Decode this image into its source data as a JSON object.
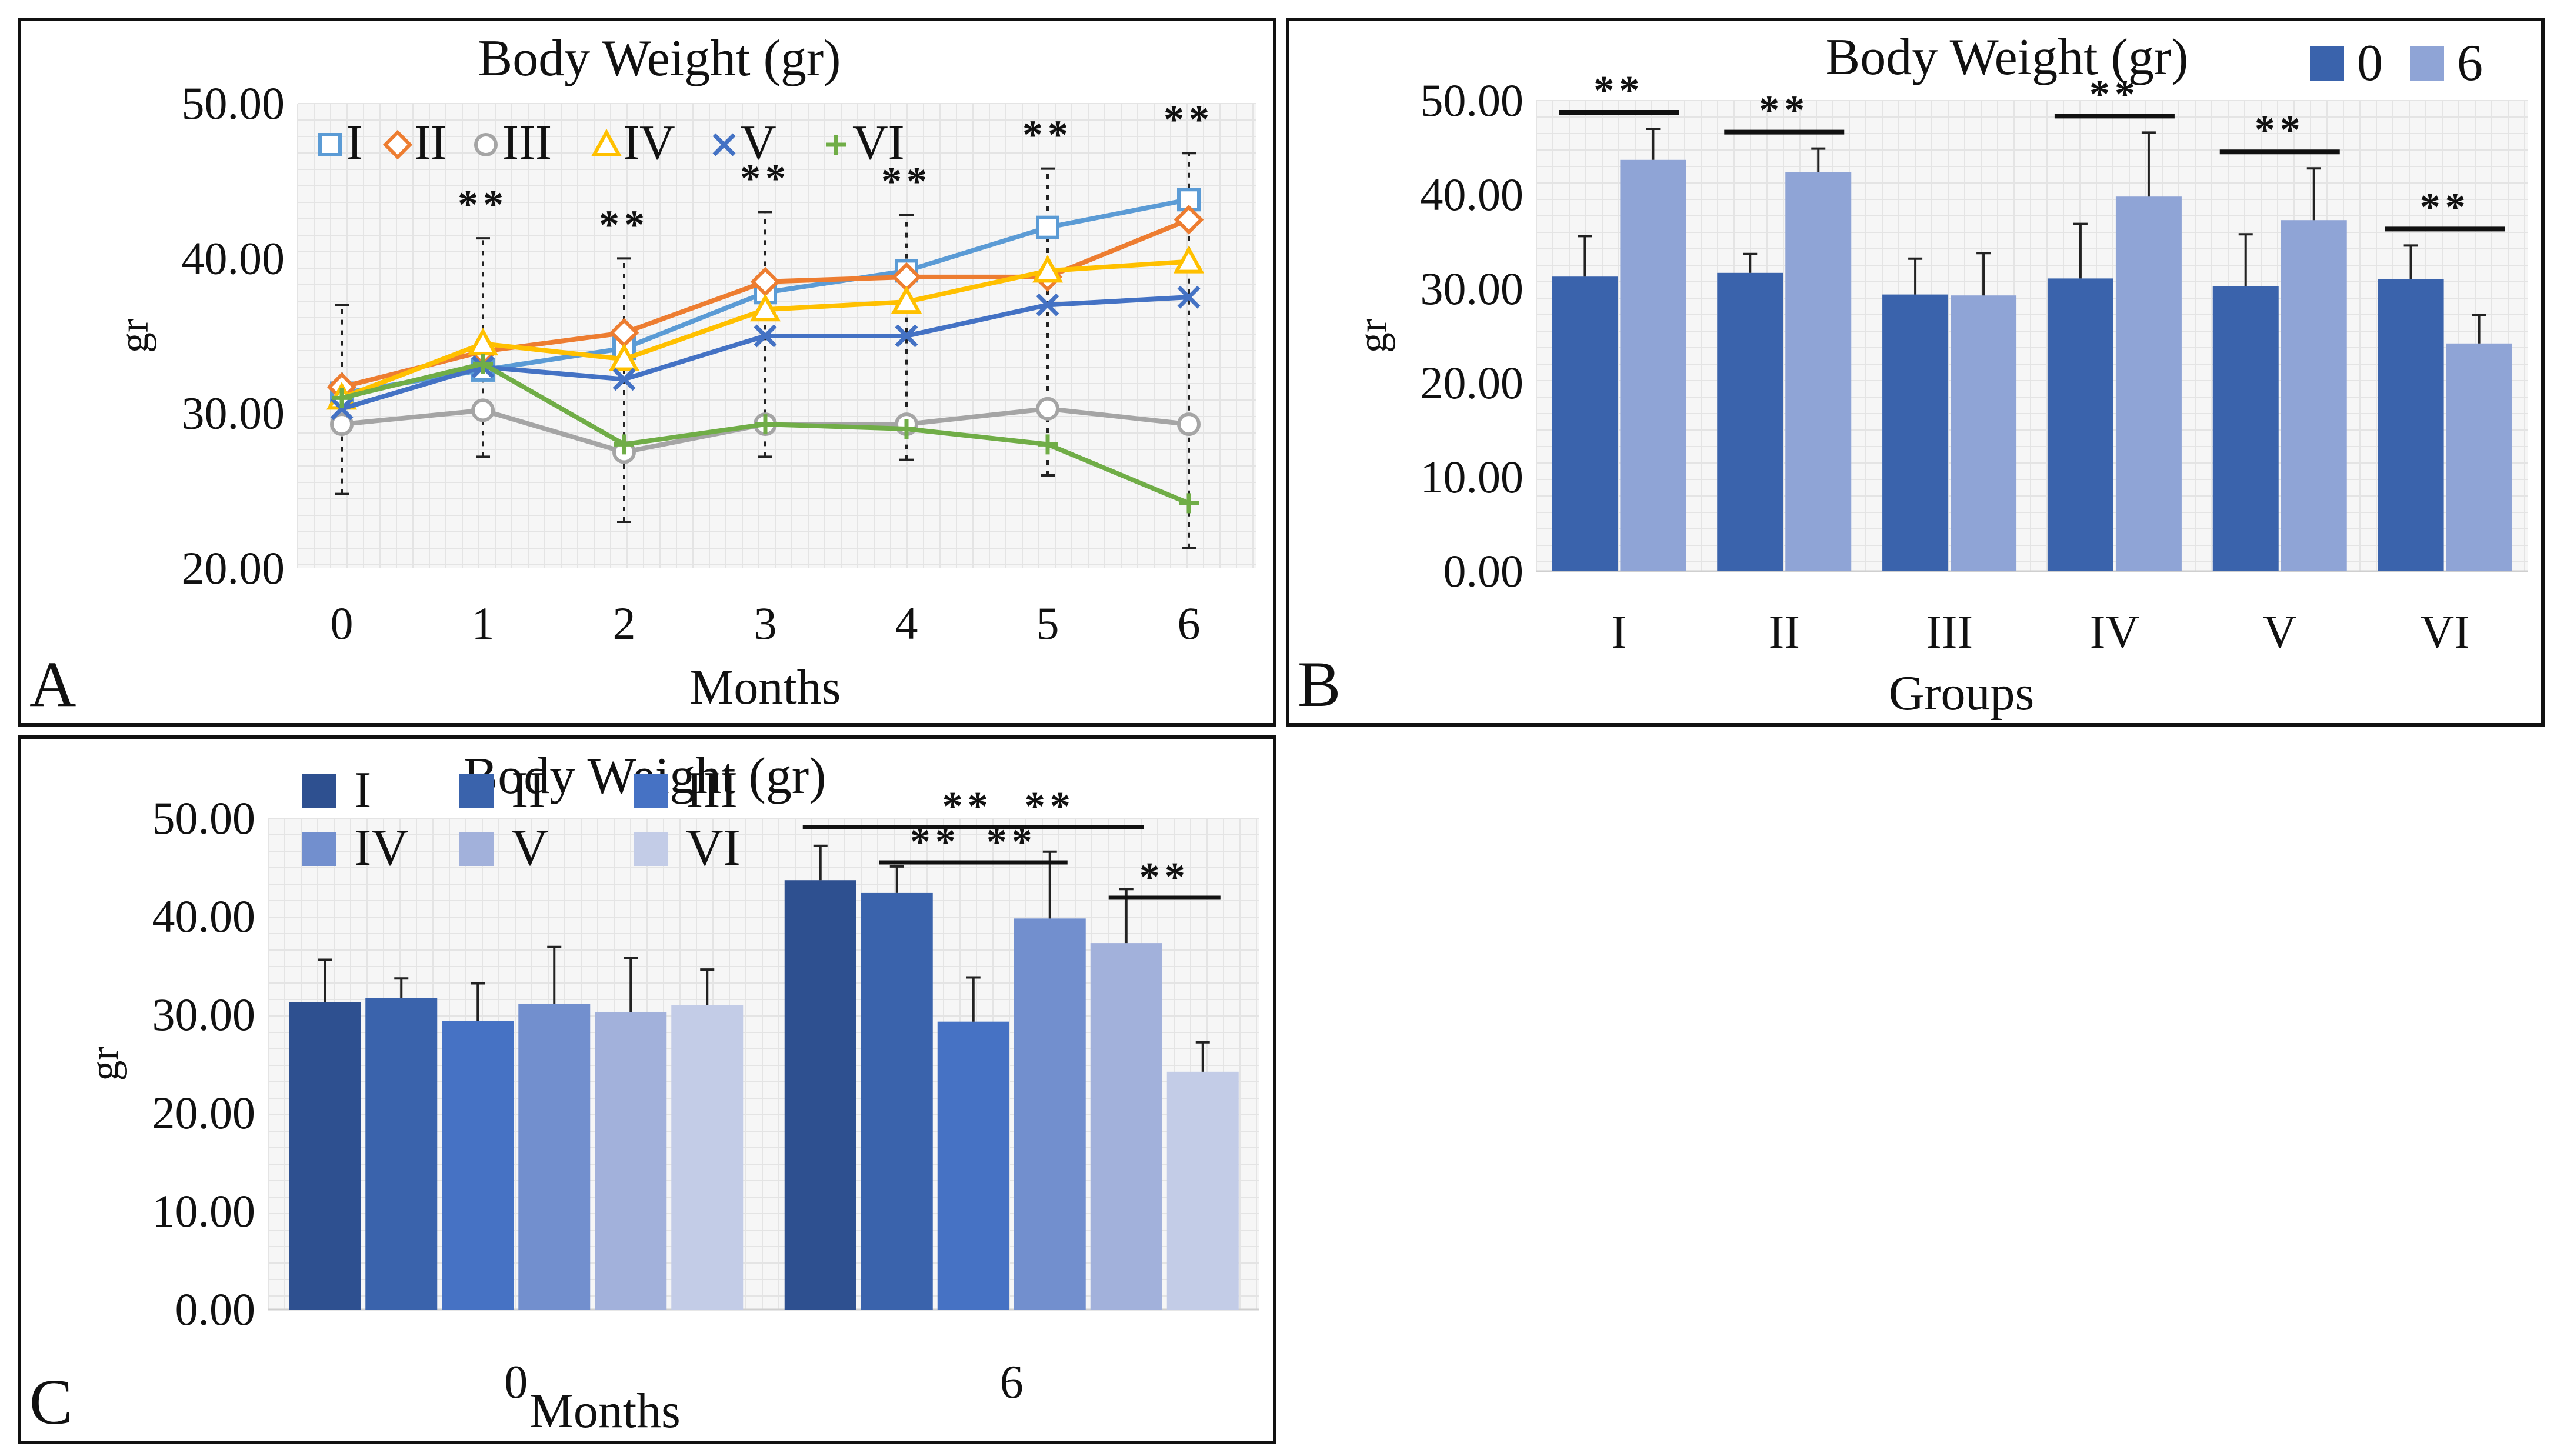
{
  "chart_data": [
    {
      "panel": "A",
      "type": "line",
      "title": "Body Weight (gr)",
      "xlabel": "Months",
      "ylabel": "gr",
      "ylim": [
        20,
        50
      ],
      "yticks": [
        "20.00",
        "30.00",
        "40.00",
        "50.00"
      ],
      "categories": [
        "0",
        "1",
        "2",
        "3",
        "4",
        "5",
        "6"
      ],
      "series": [
        {
          "name": "I",
          "color": "#5B9BD5",
          "marker": "square",
          "values": [
            31.3,
            32.8,
            34.2,
            37.8,
            39.2,
            42.0,
            43.8
          ]
        },
        {
          "name": "II",
          "color": "#ED7D31",
          "marker": "diamond",
          "values": [
            31.7,
            34.0,
            35.2,
            38.5,
            38.8,
            38.8,
            42.5
          ]
        },
        {
          "name": "III",
          "color": "#A5A5A5",
          "marker": "circle",
          "values": [
            29.3,
            30.2,
            27.5,
            29.3,
            29.3,
            30.3,
            29.3
          ]
        },
        {
          "name": "IV",
          "color": "#FFC000",
          "marker": "triangle",
          "values": [
            31.0,
            34.5,
            33.5,
            36.7,
            37.2,
            39.2,
            39.8
          ]
        },
        {
          "name": "V",
          "color": "#4472C4",
          "marker": "x",
          "values": [
            30.3,
            33.0,
            32.2,
            35.0,
            35.0,
            37.0,
            37.5
          ]
        },
        {
          "name": "VI",
          "color": "#70AD47",
          "marker": "plus",
          "values": [
            31.0,
            33.2,
            28.0,
            29.3,
            29.0,
            28.0,
            24.2
          ]
        }
      ],
      "error_bars": [
        {
          "lo": 24.8,
          "hi": 37.0
        },
        {
          "lo": 27.2,
          "hi": 41.3
        },
        {
          "lo": 23.0,
          "hi": 40.0
        },
        {
          "lo": 27.2,
          "hi": 43.0
        },
        {
          "lo": 27.0,
          "hi": 42.8
        },
        {
          "lo": 26.0,
          "hi": 45.8
        },
        {
          "lo": 21.3,
          "hi": 46.8
        }
      ],
      "significance": [
        {
          "category": "1",
          "label": "**"
        },
        {
          "category": "2",
          "label": "**"
        },
        {
          "category": "3",
          "label": "**"
        },
        {
          "category": "4",
          "label": "**"
        },
        {
          "category": "5",
          "label": "**"
        },
        {
          "category": "6",
          "label": "**"
        }
      ],
      "legend": "top"
    },
    {
      "panel": "B",
      "type": "bar",
      "title": "Body Weight (gr)",
      "xlabel": "Groups",
      "ylabel": "gr",
      "ylim": [
        0,
        50
      ],
      "yticks": [
        "0.00",
        "10.00",
        "20.00",
        "30.00",
        "40.00",
        "50.00"
      ],
      "categories": [
        "I",
        "II",
        "III",
        "IV",
        "V",
        "VI"
      ],
      "series": [
        {
          "name": "0",
          "color": "#3A63AC",
          "values": [
            31.3,
            31.7,
            29.4,
            31.1,
            30.3,
            31.0
          ],
          "err": [
            4.3,
            2.0,
            3.8,
            5.8,
            5.5,
            3.6
          ]
        },
        {
          "name": "6",
          "color": "#8FA4D6",
          "values": [
            43.7,
            42.4,
            29.3,
            39.8,
            37.3,
            24.2
          ],
          "err": [
            3.3,
            2.5,
            4.5,
            6.8,
            5.5,
            3.0
          ]
        }
      ],
      "significance": [
        {
          "category": "I",
          "label": "**"
        },
        {
          "category": "II",
          "label": "**"
        },
        {
          "category": "IV",
          "label": "**"
        },
        {
          "category": "V",
          "label": "**"
        },
        {
          "category": "VI",
          "label": "**"
        }
      ],
      "legend": "top-right"
    },
    {
      "panel": "C",
      "type": "bar",
      "title": "Body Weight (gr)",
      "xlabel": "Months",
      "ylabel": "gr",
      "ylim": [
        0,
        50
      ],
      "yticks": [
        "0.00",
        "10.00",
        "20.00",
        "30.00",
        "40.00",
        "50.00"
      ],
      "categories": [
        "0",
        "6"
      ],
      "series": [
        {
          "name": "I",
          "color": "#2E5090",
          "values": [
            31.3,
            43.7
          ],
          "err": [
            4.3,
            3.5
          ]
        },
        {
          "name": "II",
          "color": "#3A63AC",
          "values": [
            31.7,
            42.4
          ],
          "err": [
            2.0,
            2.7
          ]
        },
        {
          "name": "III",
          "color": "#4672C4",
          "values": [
            29.4,
            29.3
          ],
          "err": [
            3.8,
            4.5
          ]
        },
        {
          "name": "IV",
          "color": "#728FCE",
          "values": [
            31.1,
            39.8
          ],
          "err": [
            5.8,
            6.8
          ]
        },
        {
          "name": "V",
          "color": "#A2B1DB",
          "values": [
            30.3,
            37.3
          ],
          "err": [
            5.5,
            5.5
          ]
        },
        {
          "name": "VI",
          "color": "#C3CCE7",
          "values": [
            31.0,
            24.2
          ],
          "err": [
            3.6,
            3.0
          ]
        }
      ],
      "significance": [
        {
          "from": "I",
          "to": "III",
          "label": "**"
        },
        {
          "from": "II",
          "to": "III",
          "label": "**"
        },
        {
          "from": "III",
          "to": "IV",
          "label": "**"
        },
        {
          "from": "III",
          "to": "V",
          "label": "**"
        },
        {
          "from": "V",
          "to": "VI",
          "label": "**"
        }
      ],
      "legend": "top-left"
    }
  ],
  "panels": {
    "a_letter": "A",
    "b_letter": "B",
    "c_letter": "C"
  }
}
